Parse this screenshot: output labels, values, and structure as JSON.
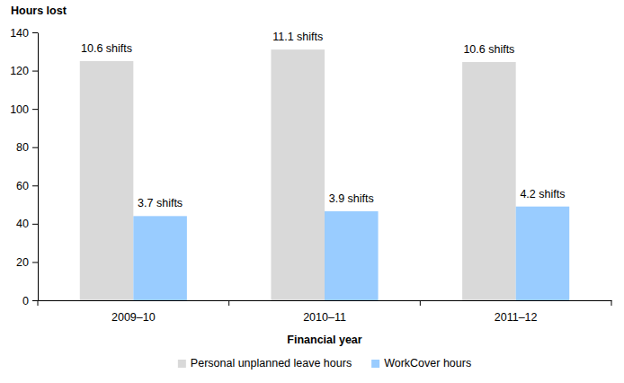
{
  "chart_data": {
    "type": "bar",
    "y_label": "Hours lost",
    "x_label": "Financial year",
    "categories": [
      "2009–10",
      "2010–11",
      "2011–12"
    ],
    "series": [
      {
        "name": "Personal unplanned leave hours",
        "color": "#d9d9d9",
        "values": [
          125,
          131,
          124.5
        ],
        "annotations": [
          "10.6 shifts",
          "11.1 shifts",
          "10.6 shifts"
        ]
      },
      {
        "name": "WorkCover hours",
        "color": "#99ccff",
        "values": [
          44,
          46.5,
          49
        ],
        "annotations": [
          "3.7 shifts",
          "3.9 shifts",
          "4.2 shifts"
        ]
      }
    ],
    "ylim": [
      0,
      140
    ],
    "yticks": [
      0,
      20,
      40,
      60,
      80,
      100,
      120,
      140
    ],
    "grid": false,
    "legend": "bottom"
  }
}
